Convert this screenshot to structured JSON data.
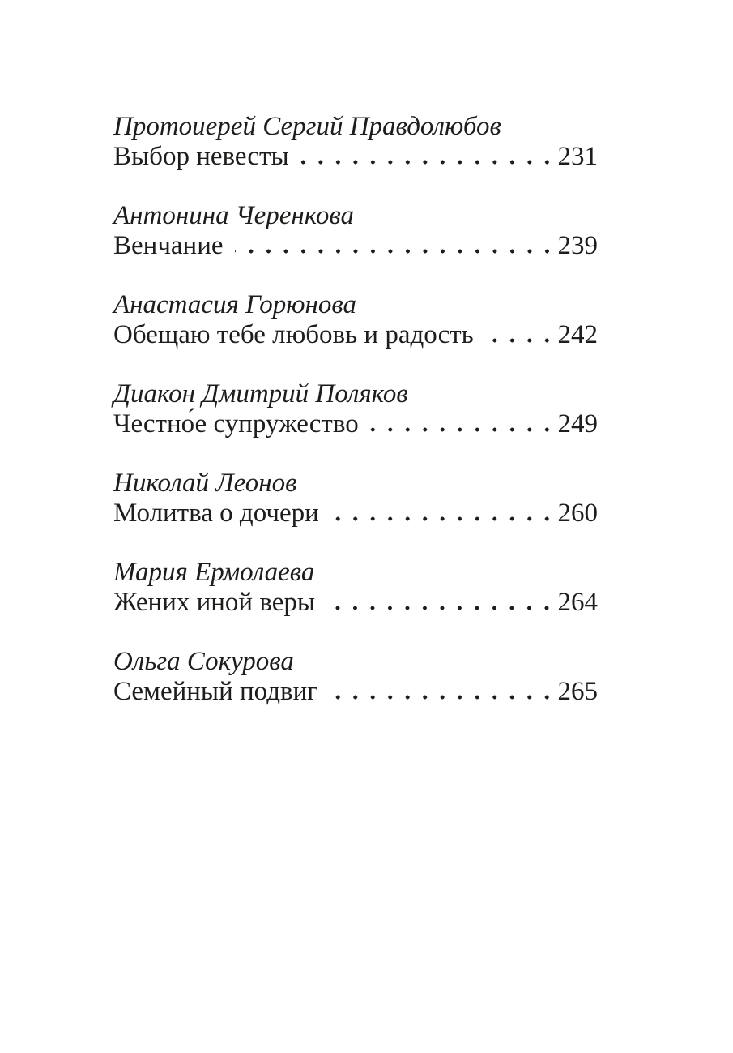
{
  "page": {
    "background_color": "#ffffff",
    "text_color": "#1d1d1b"
  },
  "toc": {
    "entries": [
      {
        "author": "Протоиерей Сергий Правдолюбов",
        "title": "Выбор невесты",
        "page": "231"
      },
      {
        "author": "Антонина Черенкова",
        "title": "Венчание",
        "page": "239"
      },
      {
        "author": "Анастасия Горюнова",
        "title": "Обещаю тебе любовь и радость",
        "page": "242"
      },
      {
        "author": "Диакон Дмитрий Поляков",
        "title": "Честно́е супружество",
        "page": "249"
      },
      {
        "author": "Николай Леонов",
        "title": "Молитва о дочери",
        "page": "260"
      },
      {
        "author": "Мария Ермолаева",
        "title": "Жених иной веры",
        "page": "264"
      },
      {
        "author": "Ольга Сокурова",
        "title": "Семейный подвиг",
        "page": "265"
      }
    ]
  }
}
